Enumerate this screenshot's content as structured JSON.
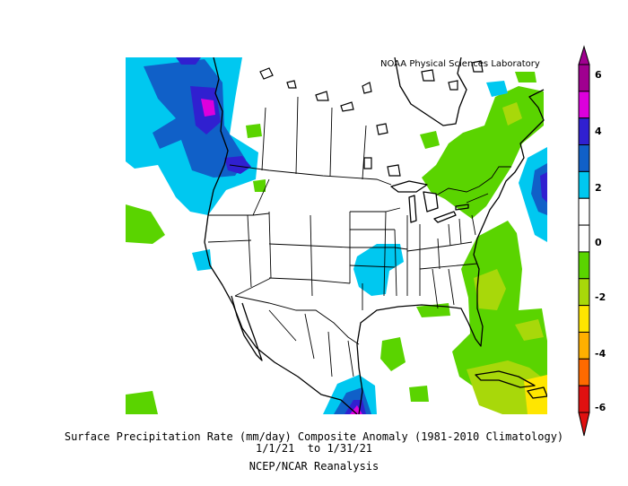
{
  "credit": "NOAA Physical Sciences Laboratory",
  "caption": {
    "line1": "Surface Precipitation Rate (mm/day) Composite Anomaly (1981-2010 Climatology)",
    "line2": "1/1/21  to 1/31/21",
    "line3": "NCEP/NCAR Reanalysis"
  },
  "colorbar": {
    "labels": [
      "6",
      "4",
      "2",
      "0",
      "-2",
      "-4",
      "-6"
    ],
    "colors": [
      "#a00090",
      "#dd00dd",
      "#3020d0",
      "#1060c8",
      "#00c8f0",
      "#ffffff",
      "#ffffff",
      "#5ad400",
      "#a8d80a",
      "#ffe600",
      "#ffb000",
      "#ff6a00",
      "#e01010"
    ]
  },
  "colors": {
    "purple": "#a00090",
    "magenta": "#dd00dd",
    "indigo": "#3020d0",
    "blue": "#1060c8",
    "cyan": "#00c8f0",
    "green": "#5ad400",
    "lime": "#a8d80a",
    "yellow": "#ffe600"
  }
}
